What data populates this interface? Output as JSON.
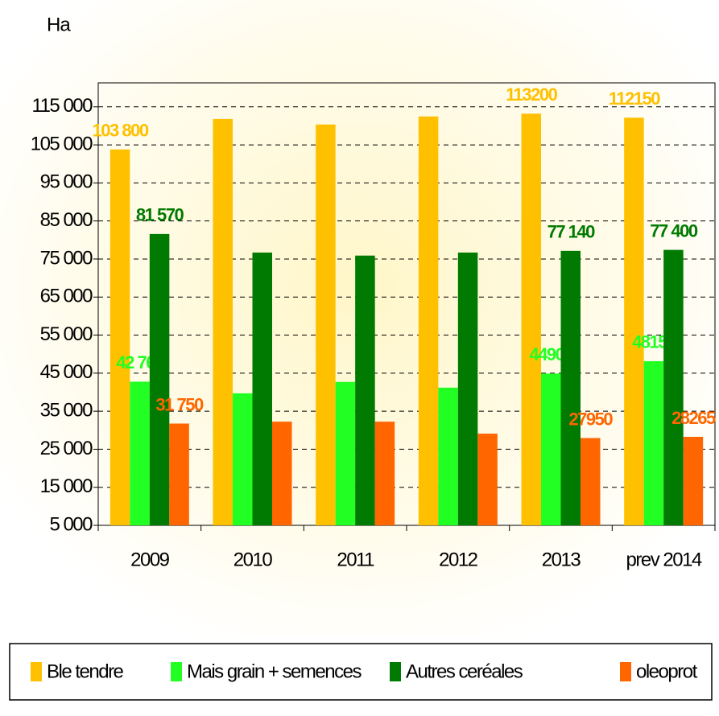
{
  "chart_data": {
    "type": "bar",
    "title": "Ha",
    "categories": [
      "2009",
      "2010",
      "2011",
      "2012",
      "2013",
      "prev 2014"
    ],
    "series": [
      {
        "name": "Ble tendre",
        "color": "#ffc000",
        "values": [
          103800,
          111800,
          110350,
          112470,
          113200,
          112150
        ],
        "value_labels": [
          "103 800",
          null,
          null,
          null,
          "113200",
          "112150"
        ]
      },
      {
        "name": "Mais grain + semences",
        "color": "#22ff22",
        "values": [
          42760,
          39700,
          42700,
          41200,
          44900,
          48150
        ],
        "value_labels": [
          "42 760",
          null,
          null,
          null,
          "44900",
          "48150"
        ]
      },
      {
        "name": "Autres ceréales",
        "color": "#007a00",
        "values": [
          81570,
          76700,
          75900,
          76700,
          77140,
          77400
        ],
        "value_labels": [
          "81 570",
          null,
          null,
          null,
          "77 140",
          "77 400"
        ]
      },
      {
        "name": "oleoprot",
        "color": "#ff6600",
        "values": [
          31750,
          32250,
          32250,
          29100,
          27950,
          28265
        ],
        "value_labels": [
          "31 750",
          null,
          null,
          null,
          "27950",
          "28265"
        ]
      }
    ],
    "ylim": [
      5000,
      121300
    ],
    "yticks": [
      {
        "value": 5000,
        "label": "5 000"
      },
      {
        "value": 15000,
        "label": "15 000"
      },
      {
        "value": 25000,
        "label": "25 000"
      },
      {
        "value": 35000,
        "label": "35 000"
      },
      {
        "value": 45000,
        "label": "45 000"
      },
      {
        "value": 55000,
        "label": "55 000"
      },
      {
        "value": 65000,
        "label": "65 000"
      },
      {
        "value": 75000,
        "label": "75 000"
      },
      {
        "value": 85000,
        "label": "85 000"
      },
      {
        "value": 95000,
        "label": "95 000"
      },
      {
        "value": 105000,
        "label": "105 000"
      },
      {
        "value": 115000,
        "label": "115 000"
      }
    ],
    "grid": true,
    "legend": "bottom"
  }
}
